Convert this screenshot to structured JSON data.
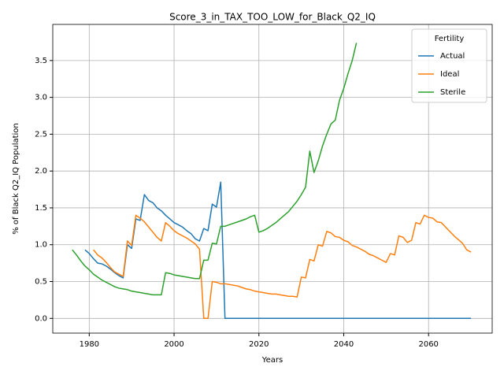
{
  "chart_data": {
    "type": "line",
    "title": "Score_3_in_TAX_TOO_LOW_for_Black_Q2_IQ",
    "xlabel": "Years",
    "ylabel": "% of Black Q2_IQ Population",
    "legend_title": "Fertility",
    "legend": "upper right",
    "grid": true,
    "xlim": [
      1971.4,
      2075.0
    ],
    "ylim": [
      -0.2,
      3.99
    ],
    "xticks": [
      1980,
      2000,
      2020,
      2040,
      2060
    ],
    "yticks": [
      {
        "value": 0,
        "label": "0.0"
      },
      0.5,
      {
        "value": 1,
        "label": "1.0"
      },
      1.5,
      {
        "value": 2,
        "label": "2.0"
      },
      2.5,
      {
        "value": 3,
        "label": "3.0"
      },
      3.5
    ],
    "x": [
      1976,
      1977,
      1978,
      1979,
      1980,
      1981,
      1982,
      1983,
      1984,
      1985,
      1986,
      1987,
      1988,
      1989,
      1990,
      1991,
      1992,
      1993,
      1994,
      1995,
      1996,
      1997,
      1998,
      1999,
      2000,
      2001,
      2002,
      2003,
      2004,
      2005,
      2006,
      2007,
      2008,
      2009,
      2010,
      2011,
      2012,
      2013,
      2014,
      2015,
      2016,
      2017,
      2018,
      2019,
      2020,
      2021,
      2022,
      2023,
      2024,
      2025,
      2026,
      2027,
      2028,
      2029,
      2030,
      2031,
      2032,
      2033,
      2034,
      2035,
      2036,
      2037,
      2038,
      2039,
      2040,
      2041,
      2042,
      2043,
      2044,
      2045,
      2046,
      2047,
      2048,
      2049,
      2050,
      2051,
      2052,
      2053,
      2054,
      2055,
      2056,
      2057,
      2058,
      2059,
      2060,
      2061,
      2062,
      2063,
      2064,
      2065,
      2066,
      2067,
      2068,
      2069,
      2070
    ],
    "series": [
      {
        "name": "Actual",
        "color": "#1f77b4",
        "values": [
          null,
          null,
          null,
          0.93,
          0.88,
          0.81,
          0.75,
          0.74,
          0.71,
          0.67,
          0.62,
          0.58,
          0.55,
          1.0,
          0.95,
          1.35,
          1.33,
          1.68,
          1.6,
          1.57,
          1.5,
          1.46,
          1.4,
          1.35,
          1.3,
          1.27,
          1.24,
          1.19,
          1.15,
          1.08,
          1.05,
          1.22,
          1.19,
          1.55,
          1.51,
          1.85,
          0,
          0,
          0,
          0,
          0,
          0,
          0,
          0,
          0,
          0,
          0,
          0,
          0,
          0,
          0,
          0,
          0,
          0,
          0,
          0,
          0,
          0,
          0,
          0,
          0,
          0,
          0,
          0,
          0,
          0,
          0,
          0,
          0,
          0,
          0,
          0,
          0,
          0,
          0,
          0,
          0,
          0,
          0,
          0,
          0,
          0,
          0,
          0,
          0,
          0,
          0,
          0,
          0,
          0,
          0,
          0,
          0,
          0,
          0
        ]
      },
      {
        "name": "Ideal",
        "color": "#ff7f0e",
        "values": [
          null,
          null,
          null,
          null,
          null,
          0.93,
          0.86,
          0.82,
          0.76,
          0.69,
          0.63,
          0.6,
          0.57,
          1.05,
          0.99,
          1.4,
          1.36,
          1.31,
          1.24,
          1.17,
          1.1,
          1.05,
          1.3,
          1.25,
          1.19,
          1.15,
          1.12,
          1.09,
          1.05,
          1.01,
          0.94,
          0,
          0,
          0.5,
          0.49,
          0.47,
          0.47,
          0.46,
          0.45,
          0.44,
          0.42,
          0.4,
          0.39,
          0.37,
          0.36,
          0.35,
          0.34,
          0.33,
          0.33,
          0.32,
          0.31,
          0.3,
          0.3,
          0.29,
          0.56,
          0.55,
          0.8,
          0.78,
          1.0,
          0.98,
          1.18,
          1.16,
          1.11,
          1.1,
          1.06,
          1.04,
          0.99,
          0.97,
          0.94,
          0.91,
          0.87,
          0.85,
          0.82,
          0.79,
          0.76,
          0.88,
          0.86,
          1.12,
          1.1,
          1.03,
          1.06,
          1.3,
          1.28,
          1.4,
          1.37,
          1.36,
          1.31,
          1.3,
          1.24,
          1.18,
          1.12,
          1.07,
          1.02,
          0.93,
          0.9
        ]
      },
      {
        "name": "Sterile",
        "color": "#2ca02c",
        "values": [
          0.93,
          0.86,
          0.78,
          0.71,
          0.66,
          0.6,
          0.56,
          0.52,
          0.49,
          0.46,
          0.43,
          0.41,
          0.4,
          0.39,
          0.37,
          0.36,
          0.35,
          0.34,
          0.33,
          0.32,
          0.32,
          0.32,
          0.62,
          0.61,
          0.59,
          0.58,
          0.57,
          0.56,
          0.55,
          0.54,
          0.54,
          0.79,
          0.79,
          1.02,
          1.01,
          1.25,
          1.25,
          1.27,
          1.29,
          1.31,
          1.33,
          1.35,
          1.38,
          1.4,
          1.17,
          1.19,
          1.22,
          1.26,
          1.3,
          1.35,
          1.4,
          1.45,
          1.52,
          1.59,
          1.68,
          1.78,
          2.27,
          1.98,
          2.14,
          2.34,
          2.5,
          2.64,
          2.69,
          2.96,
          3.12,
          3.32,
          3.5,
          3.74,
          null,
          null,
          null,
          null,
          null,
          null,
          null,
          null,
          null,
          null,
          null,
          null,
          null,
          null,
          null,
          null,
          null,
          null,
          null,
          null,
          null,
          null,
          null,
          null,
          null,
          null,
          null
        ]
      }
    ]
  }
}
